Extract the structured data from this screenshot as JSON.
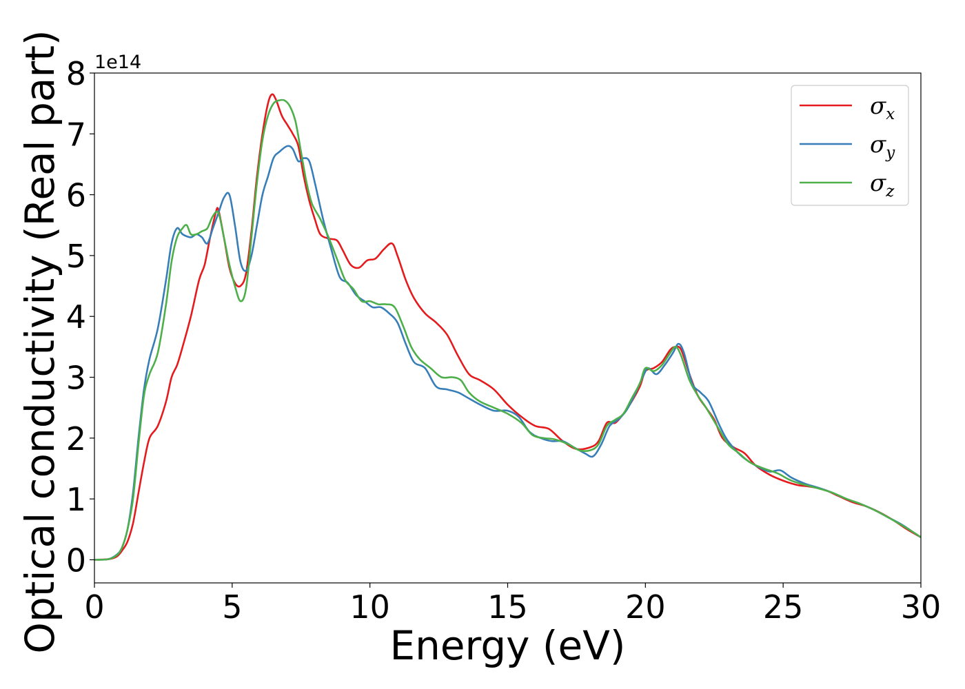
{
  "chart_data": {
    "type": "line",
    "xlabel": "Energy (eV)",
    "ylabel": "Optical conductivity (Real part)",
    "y_offset_text": "1e14",
    "xlim": [
      0,
      30
    ],
    "ylim": [
      -0.38,
      8.0
    ],
    "x_ticks": [
      0,
      5,
      10,
      15,
      20,
      25,
      30
    ],
    "y_ticks": [
      0,
      1,
      2,
      3,
      4,
      5,
      6,
      7,
      8
    ],
    "grid": false,
    "legend_position": "top-right",
    "series": [
      {
        "name": "σx",
        "symbol": "σ",
        "subscript": "x",
        "color": "#e41a1c",
        "points": [
          [
            0,
            0
          ],
          [
            0.5,
            0.01
          ],
          [
            0.8,
            0.05
          ],
          [
            1.0,
            0.15
          ],
          [
            1.2,
            0.3
          ],
          [
            1.4,
            0.6
          ],
          [
            1.6,
            1.1
          ],
          [
            1.8,
            1.6
          ],
          [
            2.0,
            2.0
          ],
          [
            2.3,
            2.2
          ],
          [
            2.6,
            2.6
          ],
          [
            2.8,
            3.0
          ],
          [
            3.0,
            3.2
          ],
          [
            3.2,
            3.5
          ],
          [
            3.5,
            4.0
          ],
          [
            3.8,
            4.6
          ],
          [
            4.0,
            4.85
          ],
          [
            4.2,
            5.3
          ],
          [
            4.4,
            5.7
          ],
          [
            4.5,
            5.75
          ],
          [
            4.7,
            5.3
          ],
          [
            4.9,
            4.8
          ],
          [
            5.1,
            4.55
          ],
          [
            5.3,
            4.5
          ],
          [
            5.5,
            4.7
          ],
          [
            5.7,
            5.4
          ],
          [
            5.9,
            6.3
          ],
          [
            6.1,
            7.0
          ],
          [
            6.3,
            7.5
          ],
          [
            6.45,
            7.65
          ],
          [
            6.6,
            7.55
          ],
          [
            6.8,
            7.3
          ],
          [
            7.0,
            7.15
          ],
          [
            7.2,
            7.0
          ],
          [
            7.4,
            6.8
          ],
          [
            7.6,
            6.3
          ],
          [
            7.8,
            5.9
          ],
          [
            8.0,
            5.6
          ],
          [
            8.2,
            5.35
          ],
          [
            8.5,
            5.28
          ],
          [
            8.8,
            5.25
          ],
          [
            9.0,
            5.1
          ],
          [
            9.3,
            4.85
          ],
          [
            9.6,
            4.8
          ],
          [
            9.9,
            4.92
          ],
          [
            10.2,
            4.95
          ],
          [
            10.5,
            5.1
          ],
          [
            10.8,
            5.2
          ],
          [
            11.0,
            5.0
          ],
          [
            11.3,
            4.6
          ],
          [
            11.6,
            4.3
          ],
          [
            12.0,
            4.05
          ],
          [
            12.4,
            3.9
          ],
          [
            12.8,
            3.7
          ],
          [
            13.2,
            3.35
          ],
          [
            13.6,
            3.05
          ],
          [
            14.0,
            2.95
          ],
          [
            14.5,
            2.8
          ],
          [
            15.0,
            2.55
          ],
          [
            15.5,
            2.35
          ],
          [
            16.0,
            2.2
          ],
          [
            16.5,
            2.15
          ],
          [
            17.0,
            1.95
          ],
          [
            17.5,
            1.82
          ],
          [
            18.0,
            1.85
          ],
          [
            18.3,
            1.95
          ],
          [
            18.6,
            2.25
          ],
          [
            18.9,
            2.25
          ],
          [
            19.2,
            2.4
          ],
          [
            19.5,
            2.6
          ],
          [
            19.8,
            2.85
          ],
          [
            20.0,
            3.1
          ],
          [
            20.3,
            3.15
          ],
          [
            20.6,
            3.25
          ],
          [
            20.9,
            3.45
          ],
          [
            21.1,
            3.5
          ],
          [
            21.3,
            3.45
          ],
          [
            21.6,
            3.05
          ],
          [
            21.9,
            2.7
          ],
          [
            22.2,
            2.5
          ],
          [
            22.5,
            2.3
          ],
          [
            22.8,
            2.0
          ],
          [
            23.2,
            1.85
          ],
          [
            23.6,
            1.75
          ],
          [
            24.0,
            1.55
          ],
          [
            24.5,
            1.4
          ],
          [
            25.0,
            1.3
          ],
          [
            25.5,
            1.23
          ],
          [
            26.0,
            1.2
          ],
          [
            26.5,
            1.15
          ],
          [
            27.0,
            1.05
          ],
          [
            27.5,
            0.95
          ],
          [
            28.0,
            0.88
          ],
          [
            28.5,
            0.78
          ],
          [
            29.0,
            0.65
          ],
          [
            29.5,
            0.5
          ],
          [
            30.0,
            0.37
          ]
        ]
      },
      {
        "name": "σy",
        "symbol": "σ",
        "subscript": "y",
        "color": "#377eb8",
        "points": [
          [
            0,
            0
          ],
          [
            0.5,
            0.01
          ],
          [
            0.8,
            0.08
          ],
          [
            1.0,
            0.2
          ],
          [
            1.2,
            0.5
          ],
          [
            1.4,
            1.1
          ],
          [
            1.6,
            2.0
          ],
          [
            1.8,
            2.8
          ],
          [
            2.0,
            3.3
          ],
          [
            2.3,
            3.8
          ],
          [
            2.6,
            4.6
          ],
          [
            2.8,
            5.2
          ],
          [
            3.0,
            5.45
          ],
          [
            3.2,
            5.35
          ],
          [
            3.5,
            5.3
          ],
          [
            3.7,
            5.35
          ],
          [
            3.9,
            5.3
          ],
          [
            4.1,
            5.2
          ],
          [
            4.3,
            5.45
          ],
          [
            4.5,
            5.7
          ],
          [
            4.7,
            5.95
          ],
          [
            4.9,
            6.0
          ],
          [
            5.1,
            5.5
          ],
          [
            5.3,
            4.9
          ],
          [
            5.5,
            4.75
          ],
          [
            5.7,
            5.0
          ],
          [
            5.9,
            5.5
          ],
          [
            6.1,
            6.0
          ],
          [
            6.3,
            6.3
          ],
          [
            6.5,
            6.6
          ],
          [
            6.7,
            6.7
          ],
          [
            7.0,
            6.8
          ],
          [
            7.2,
            6.75
          ],
          [
            7.4,
            6.55
          ],
          [
            7.6,
            6.6
          ],
          [
            7.8,
            6.55
          ],
          [
            8.0,
            6.2
          ],
          [
            8.3,
            5.6
          ],
          [
            8.6,
            5.1
          ],
          [
            8.9,
            4.65
          ],
          [
            9.2,
            4.55
          ],
          [
            9.5,
            4.35
          ],
          [
            9.8,
            4.25
          ],
          [
            10.1,
            4.15
          ],
          [
            10.4,
            4.15
          ],
          [
            10.7,
            4.05
          ],
          [
            11.0,
            3.9
          ],
          [
            11.3,
            3.55
          ],
          [
            11.6,
            3.25
          ],
          [
            12.0,
            3.15
          ],
          [
            12.4,
            2.85
          ],
          [
            12.8,
            2.8
          ],
          [
            13.2,
            2.75
          ],
          [
            13.6,
            2.65
          ],
          [
            14.0,
            2.55
          ],
          [
            14.5,
            2.45
          ],
          [
            15.0,
            2.45
          ],
          [
            15.4,
            2.35
          ],
          [
            15.8,
            2.1
          ],
          [
            16.2,
            2.0
          ],
          [
            16.6,
            1.95
          ],
          [
            17.0,
            1.95
          ],
          [
            17.4,
            1.85
          ],
          [
            17.8,
            1.75
          ],
          [
            18.1,
            1.7
          ],
          [
            18.4,
            1.9
          ],
          [
            18.7,
            2.2
          ],
          [
            19.0,
            2.3
          ],
          [
            19.3,
            2.45
          ],
          [
            19.6,
            2.7
          ],
          [
            19.9,
            3.0
          ],
          [
            20.1,
            3.15
          ],
          [
            20.4,
            3.05
          ],
          [
            20.7,
            3.2
          ],
          [
            21.0,
            3.4
          ],
          [
            21.2,
            3.55
          ],
          [
            21.4,
            3.4
          ],
          [
            21.7,
            2.9
          ],
          [
            22.0,
            2.75
          ],
          [
            22.3,
            2.6
          ],
          [
            22.7,
            2.2
          ],
          [
            23.0,
            1.95
          ],
          [
            23.5,
            1.7
          ],
          [
            24.0,
            1.55
          ],
          [
            24.5,
            1.45
          ],
          [
            24.9,
            1.47
          ],
          [
            25.3,
            1.35
          ],
          [
            25.8,
            1.25
          ],
          [
            26.3,
            1.18
          ],
          [
            26.8,
            1.1
          ],
          [
            27.3,
            1.0
          ],
          [
            27.8,
            0.92
          ],
          [
            28.3,
            0.82
          ],
          [
            28.8,
            0.7
          ],
          [
            29.3,
            0.58
          ],
          [
            29.7,
            0.46
          ],
          [
            30.0,
            0.37
          ]
        ]
      },
      {
        "name": "σz",
        "symbol": "σ",
        "subscript": "z",
        "color": "#4daf4a",
        "points": [
          [
            0,
            0
          ],
          [
            0.5,
            0.01
          ],
          [
            0.8,
            0.07
          ],
          [
            1.0,
            0.2
          ],
          [
            1.2,
            0.5
          ],
          [
            1.4,
            1.0
          ],
          [
            1.6,
            1.9
          ],
          [
            1.8,
            2.7
          ],
          [
            2.0,
            3.05
          ],
          [
            2.3,
            3.4
          ],
          [
            2.6,
            4.2
          ],
          [
            2.8,
            4.9
          ],
          [
            3.0,
            5.3
          ],
          [
            3.2,
            5.45
          ],
          [
            3.35,
            5.5
          ],
          [
            3.5,
            5.35
          ],
          [
            3.7,
            5.35
          ],
          [
            3.9,
            5.4
          ],
          [
            4.1,
            5.45
          ],
          [
            4.3,
            5.65
          ],
          [
            4.5,
            5.7
          ],
          [
            4.7,
            5.3
          ],
          [
            4.9,
            4.85
          ],
          [
            5.1,
            4.5
          ],
          [
            5.3,
            4.25
          ],
          [
            5.5,
            4.45
          ],
          [
            5.7,
            5.3
          ],
          [
            5.9,
            6.2
          ],
          [
            6.1,
            6.9
          ],
          [
            6.3,
            7.3
          ],
          [
            6.5,
            7.5
          ],
          [
            6.7,
            7.55
          ],
          [
            6.9,
            7.55
          ],
          [
            7.1,
            7.45
          ],
          [
            7.3,
            7.2
          ],
          [
            7.5,
            6.7
          ],
          [
            7.7,
            6.2
          ],
          [
            7.9,
            5.85
          ],
          [
            8.2,
            5.6
          ],
          [
            8.5,
            5.3
          ],
          [
            8.8,
            4.95
          ],
          [
            9.1,
            4.6
          ],
          [
            9.4,
            4.45
          ],
          [
            9.7,
            4.25
          ],
          [
            10.0,
            4.25
          ],
          [
            10.3,
            4.2
          ],
          [
            10.6,
            4.2
          ],
          [
            10.9,
            4.15
          ],
          [
            11.2,
            3.85
          ],
          [
            11.5,
            3.5
          ],
          [
            11.8,
            3.3
          ],
          [
            12.2,
            3.15
          ],
          [
            12.6,
            3.0
          ],
          [
            13.0,
            3.0
          ],
          [
            13.3,
            2.95
          ],
          [
            13.6,
            2.75
          ],
          [
            14.0,
            2.6
          ],
          [
            14.5,
            2.5
          ],
          [
            15.0,
            2.4
          ],
          [
            15.5,
            2.25
          ],
          [
            15.9,
            2.05
          ],
          [
            16.3,
            2.0
          ],
          [
            16.7,
            1.98
          ],
          [
            17.2,
            1.9
          ],
          [
            17.6,
            1.8
          ],
          [
            18.0,
            1.8
          ],
          [
            18.3,
            1.9
          ],
          [
            18.6,
            2.2
          ],
          [
            18.9,
            2.3
          ],
          [
            19.2,
            2.4
          ],
          [
            19.5,
            2.65
          ],
          [
            19.8,
            2.9
          ],
          [
            20.0,
            3.15
          ],
          [
            20.3,
            3.1
          ],
          [
            20.6,
            3.2
          ],
          [
            20.9,
            3.4
          ],
          [
            21.1,
            3.5
          ],
          [
            21.3,
            3.35
          ],
          [
            21.6,
            2.95
          ],
          [
            21.9,
            2.7
          ],
          [
            22.2,
            2.5
          ],
          [
            22.6,
            2.2
          ],
          [
            23.0,
            1.9
          ],
          [
            23.4,
            1.75
          ],
          [
            23.8,
            1.6
          ],
          [
            24.3,
            1.5
          ],
          [
            24.8,
            1.42
          ],
          [
            25.3,
            1.3
          ],
          [
            25.8,
            1.23
          ],
          [
            26.3,
            1.17
          ],
          [
            26.8,
            1.1
          ],
          [
            27.3,
            1.0
          ],
          [
            27.8,
            0.92
          ],
          [
            28.3,
            0.82
          ],
          [
            28.8,
            0.7
          ],
          [
            29.3,
            0.57
          ],
          [
            29.7,
            0.46
          ],
          [
            30.0,
            0.37
          ]
        ]
      }
    ]
  }
}
